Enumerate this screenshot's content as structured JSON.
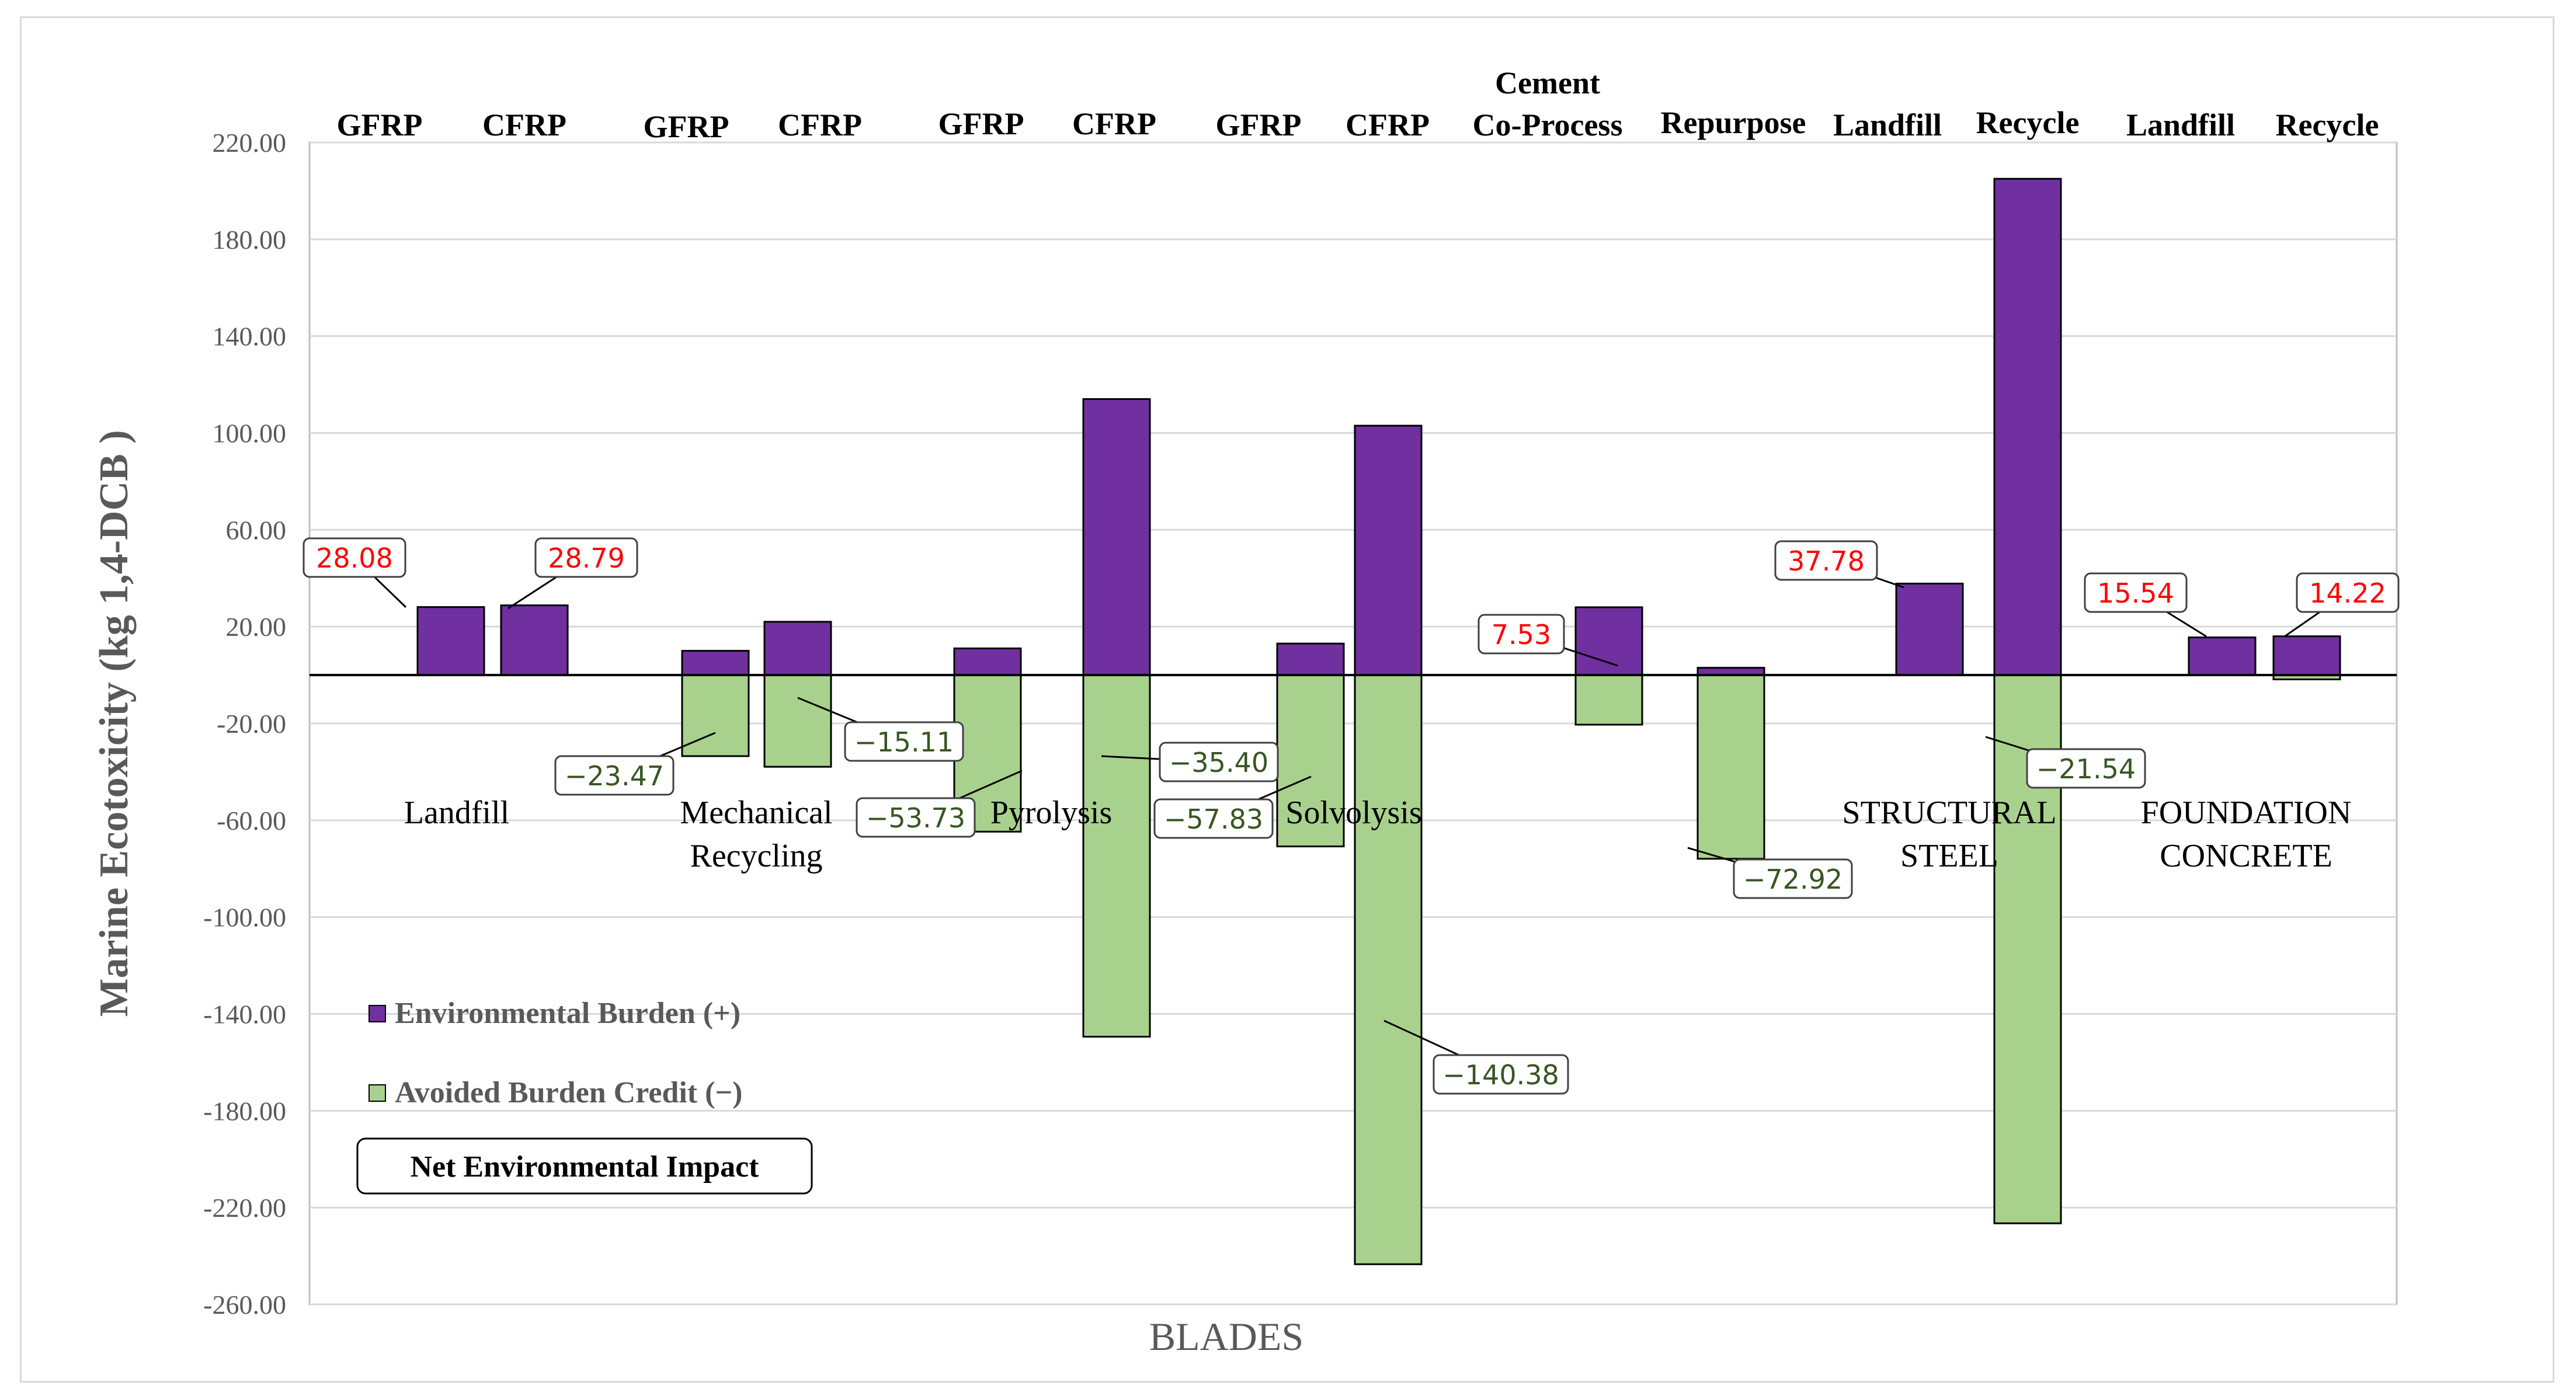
{
  "chart_data": {
    "type": "bar",
    "ylabel": "Marine Ecotoxicity (kg 1,4-DCB )",
    "xlabel": "BLADES",
    "ylim": [
      -260,
      220
    ],
    "yticks": [
      "220.00",
      "180.00",
      "140.00",
      "100.00",
      "60.00",
      "20.00",
      "-20.00",
      "-60.00",
      "-100.00",
      "-140.00",
      "-180.00",
      "-220.00",
      "-260.00"
    ],
    "colors": {
      "burden": "#7030a0",
      "credit": "#a9d18e",
      "positive_label": "#ff0000",
      "negative_label": "#375623"
    },
    "legend": {
      "position": "lower-left",
      "entries": [
        {
          "key": "burden",
          "label": "Environmental Burden (+)"
        },
        {
          "key": "credit",
          "label": "Avoided Burden Credit (−)"
        },
        {
          "key": "net",
          "label": "Net Environmental Impact"
        }
      ]
    },
    "groups": [
      {
        "name": "Landfill"
      },
      {
        "name": "Mechanical Recycling"
      },
      {
        "name": "Pyrolysis"
      },
      {
        "name": "Solvolysis"
      },
      {
        "name": ""
      },
      {
        "name": "STRUCTURAL STEEL"
      },
      {
        "name": "FOUNDATION CONCRETE"
      }
    ],
    "categories": [
      "GFRP",
      "CFRP",
      "GFRP",
      "CFRP",
      "GFRP",
      "CFRP",
      "GFRP",
      "CFRP",
      "Cement Co-Process",
      "Repurpose",
      "Landfill",
      "Recycle",
      "Landfill",
      "Recycle"
    ],
    "series": [
      {
        "name": "Environmental Burden (+)",
        "values": [
          28.08,
          28.79,
          10,
          22,
          11,
          114,
          13,
          103,
          28,
          3,
          37.78,
          205,
          15.54,
          16
        ]
      },
      {
        "name": "Avoided Burden Credit (−)",
        "values": [
          0,
          0,
          -33.5,
          -37.9,
          -64.7,
          -149.4,
          -70.8,
          -243.4,
          -20.5,
          -75.9,
          0,
          -226.5,
          0,
          -1.8
        ]
      }
    ],
    "net_labels": [
      {
        "text": "28.08"
      },
      {
        "text": "28.79"
      },
      {
        "text": "−23.47"
      },
      {
        "text": "−15.11"
      },
      {
        "text": "−53.73"
      },
      {
        "text": "−35.40"
      },
      {
        "text": "−57.83"
      },
      {
        "text": "−140.38"
      },
      {
        "text": "7.53"
      },
      {
        "text": "−72.92"
      },
      {
        "text": "37.78"
      },
      {
        "text": "−21.54"
      },
      {
        "text": "15.54"
      },
      {
        "text": "14.22"
      }
    ]
  }
}
